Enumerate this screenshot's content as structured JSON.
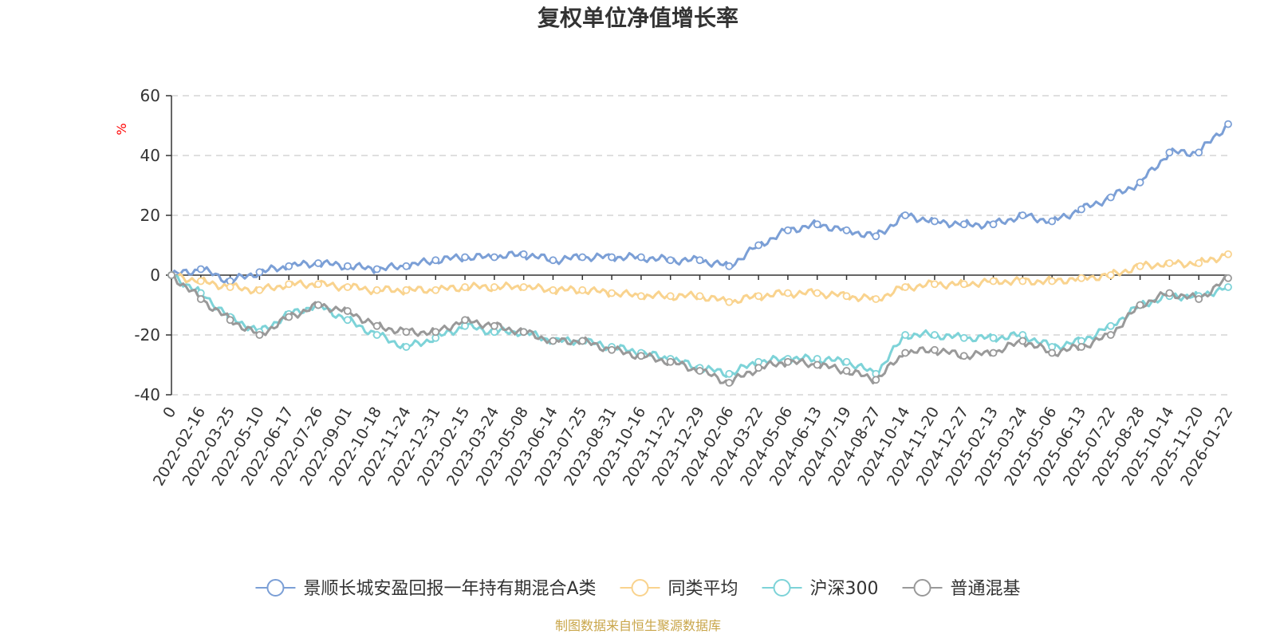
{
  "chart_data": {
    "type": "line",
    "title": "复权单位净值增长率",
    "ylabel": "%",
    "ylim": [
      -40,
      60
    ],
    "yticks": [
      60,
      40,
      20,
      0,
      -20,
      -40
    ],
    "grid": true,
    "legend_position": "bottom",
    "x_labels": [
      "0",
      "2022-02-16",
      "2022-03-25",
      "2022-05-10",
      "2022-06-17",
      "2022-07-26",
      "2022-09-01",
      "2022-10-18",
      "2022-11-24",
      "2022-12-31",
      "2023-02-15",
      "2023-03-24",
      "2023-05-08",
      "2023-06-14",
      "2023-07-25",
      "2023-08-31",
      "2023-10-16",
      "2023-11-22",
      "2023-12-29",
      "2024-02-06",
      "2024-03-22",
      "2024-05-06",
      "2024-06-13",
      "2024-07-19",
      "2024-08-27",
      "2024-10-14",
      "2024-11-20",
      "2024-12-27",
      "2025-02-13",
      "2025-03-24",
      "2025-05-06",
      "2025-06-13",
      "2025-07-22",
      "2025-08-28",
      "2025-10-14",
      "2025-11-20",
      "2026-01-22"
    ],
    "series": [
      {
        "name": "景顺长城安盈回报一年持有期混合A类",
        "color": "#7b9fd6",
        "values": [
          0,
          2,
          -2,
          1,
          3,
          4,
          3,
          2,
          3,
          5,
          6,
          6,
          7,
          5,
          6,
          6,
          6,
          5,
          5,
          3,
          10,
          15,
          17,
          15,
          13,
          20,
          18,
          17,
          17,
          20,
          18,
          22,
          26,
          31,
          41,
          41,
          50.5
        ]
      },
      {
        "name": "同类平均",
        "color": "#f9d38e",
        "values": [
          0,
          -2,
          -4,
          -5,
          -3,
          -3,
          -4,
          -5,
          -5,
          -5,
          -4,
          -4,
          -4,
          -5,
          -5,
          -6,
          -7,
          -7,
          -7,
          -9,
          -7,
          -6,
          -6,
          -7,
          -8,
          -4,
          -3,
          -3,
          -2,
          -2,
          -2,
          -1,
          0,
          3,
          4,
          4,
          7
        ]
      },
      {
        "name": "沪深300",
        "color": "#7dd3d8",
        "values": [
          0,
          -6,
          -14,
          -19,
          -13,
          -10,
          -15,
          -20,
          -24,
          -21,
          -17,
          -19,
          -19,
          -22,
          -22,
          -24,
          -26,
          -28,
          -31,
          -33,
          -29,
          -28,
          -28,
          -29,
          -33,
          -20,
          -20,
          -21,
          -21,
          -20,
          -24,
          -22,
          -17,
          -10,
          -7,
          -7,
          -4
        ]
      },
      {
        "name": "普通混基",
        "color": "#999999",
        "values": [
          0,
          -8,
          -15,
          -20,
          -14,
          -10,
          -12,
          -17,
          -19,
          -19,
          -15,
          -17,
          -19,
          -22,
          -22,
          -25,
          -27,
          -29,
          -32,
          -36,
          -31,
          -29,
          -30,
          -32,
          -35,
          -26,
          -25,
          -27,
          -26,
          -22,
          -26,
          -24,
          -20,
          -10,
          -6,
          -8,
          -1
        ]
      }
    ],
    "source": "制图数据来自恒生聚源数据库"
  }
}
